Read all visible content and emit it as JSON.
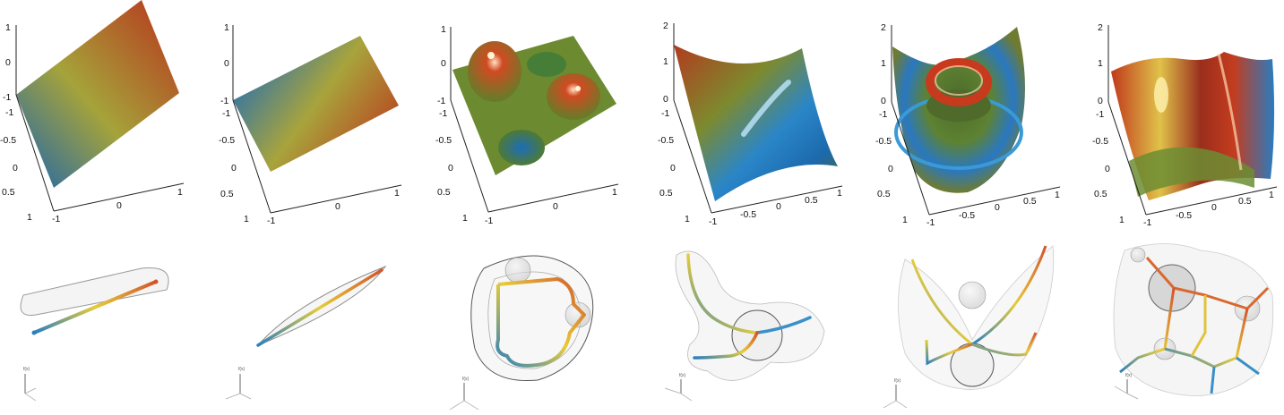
{
  "panels": [
    {
      "id": "p1",
      "surface": "linear-plane",
      "z_ticks": [
        "1",
        "0",
        "-1"
      ],
      "y_ticks": [
        "-1",
        "-0.5",
        "0",
        "0.5",
        "1"
      ],
      "x_ticks": [
        "-1",
        "0",
        "1"
      ],
      "graph": "straight-line"
    },
    {
      "id": "p2",
      "surface": "linear-plane-tilted",
      "z_ticks": [
        "1",
        "0",
        "-1"
      ],
      "y_ticks": [
        "-1",
        "-0.5",
        "0",
        "0.5",
        "1"
      ],
      "x_ticks": [
        "-1",
        "0",
        "1"
      ],
      "graph": "straight-line-pinched"
    },
    {
      "id": "p3",
      "surface": "two-peaks-two-valleys",
      "z_ticks": [
        "1",
        "0",
        "-1"
      ],
      "y_ticks": [
        "-1",
        "-0.5",
        "0",
        "0.5",
        "1"
      ],
      "x_ticks": [
        "-1",
        "0",
        "1"
      ],
      "graph": "loop"
    },
    {
      "id": "p4",
      "surface": "saddle",
      "z_ticks": [
        "2",
        "1",
        "0"
      ],
      "y_ticks": [
        "-1",
        "-0.5",
        "0",
        "0.5",
        "1"
      ],
      "x_ticks": [
        "-1",
        "-0.5",
        "0",
        "0.5",
        "1"
      ],
      "graph": "y-junction"
    },
    {
      "id": "p5",
      "surface": "ring-torus",
      "z_ticks": [
        "2",
        "1",
        "0"
      ],
      "y_ticks": [
        "-1",
        "-0.5",
        "0",
        "0.5",
        "1"
      ],
      "x_ticks": [
        "-1",
        "-0.5",
        "0",
        "0.5",
        "1"
      ],
      "graph": "five-arm-star"
    },
    {
      "id": "p6",
      "surface": "wavy-ridges",
      "z_ticks": [
        "2",
        "1",
        "0"
      ],
      "y_ticks": [
        "-1",
        "-0.5",
        "0",
        "0.5",
        "1"
      ],
      "x_ticks": [
        "-1",
        "-0.5",
        "0",
        "0.5",
        "1"
      ],
      "graph": "complex-network"
    }
  ],
  "axis_label_small": "f(x)",
  "colors": {
    "low": "#1d6fb3",
    "mid": "#a8a53a",
    "high": "#c0391b",
    "peak": "#fff6a0",
    "tube": "#8a8a8a"
  }
}
